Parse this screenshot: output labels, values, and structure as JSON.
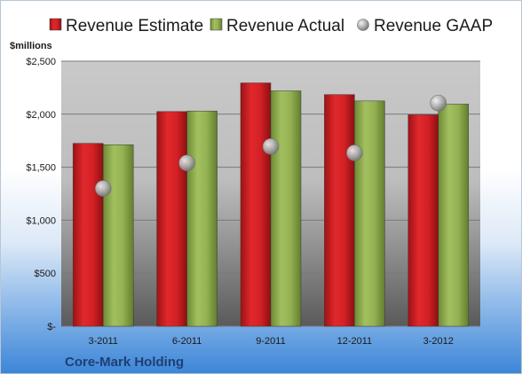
{
  "chart_data": {
    "type": "bar",
    "categories": [
      "3-2011",
      "6-2011",
      "9-2011",
      "12-2011",
      "3-2012"
    ],
    "series": [
      {
        "name": "Revenue Estimate",
        "kind": "bar",
        "color": "#cc1f24",
        "values": [
          1725,
          2025,
          2295,
          2185,
          1995
        ]
      },
      {
        "name": "Revenue Actual",
        "kind": "bar",
        "color": "#8fae4f",
        "values": [
          1712,
          2030,
          2220,
          2125,
          2095
        ]
      },
      {
        "name": "Revenue GAAP",
        "kind": "scatter",
        "color": "#b4b4b4",
        "values": [
          1300,
          1540,
          1695,
          1635,
          2105
        ]
      }
    ],
    "ylabel": "$millions",
    "ylim": [
      0,
      2500
    ],
    "yticks": [
      0,
      500,
      1000,
      1500,
      2000,
      2500
    ],
    "ytick_labels": [
      "$-",
      "$500",
      "$1,000",
      "$1,500",
      "$2,000",
      "$2,500"
    ],
    "grid": true,
    "legend": "top"
  },
  "company": "Core-Mark Holding"
}
